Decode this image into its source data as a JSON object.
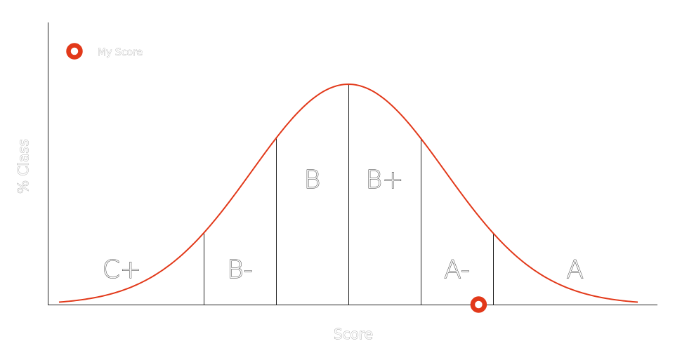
{
  "chart_data": {
    "type": "area",
    "title": "",
    "xlabel": "Score",
    "ylabel": "% Class",
    "distribution": "normal",
    "xlim": [
      -3.0,
      3.0
    ],
    "mean": 0,
    "sd": 1,
    "grades": [
      {
        "label": "C+",
        "from": -3.0,
        "to": -1.5
      },
      {
        "label": "B-",
        "from": -1.5,
        "to": -0.75
      },
      {
        "label": "B",
        "from": -0.75,
        "to": 0.0
      },
      {
        "label": "B+",
        "from": 0.0,
        "to": 0.75
      },
      {
        "label": "A-",
        "from": 0.75,
        "to": 1.5
      },
      {
        "label": "A",
        "from": 1.5,
        "to": 3.0
      }
    ],
    "boundaries": [
      -1.5,
      -0.75,
      0.0,
      0.75,
      1.5
    ],
    "my_score": {
      "label": "My Score",
      "x": 1.35
    },
    "colors": {
      "curve": "#e2391a",
      "marker": "#e2391a",
      "axis": "#222222",
      "grade_text": "#333333",
      "axis_text": "#8a8a8a"
    },
    "legend_position": "top-left",
    "grid": false
  }
}
